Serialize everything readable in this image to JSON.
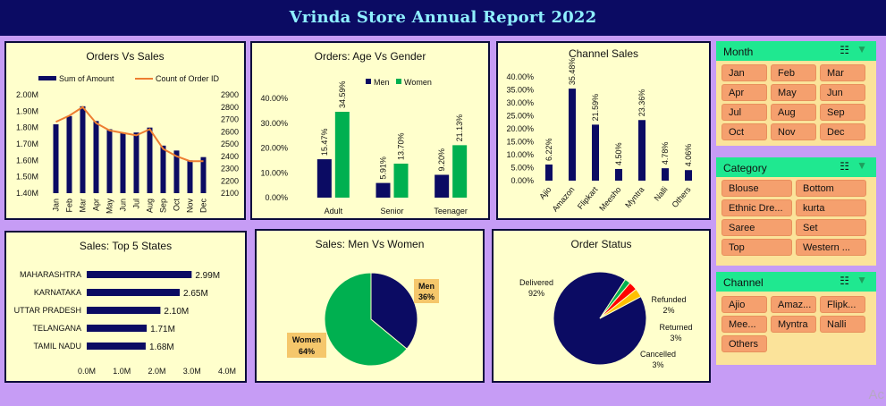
{
  "title": "Vrinda Store Annual Report 2022",
  "colors": {
    "navy": "#0b0b63",
    "green": "#00b050",
    "orange": "#ed7d31",
    "red": "#ff0000",
    "yellow": "#ffc000",
    "panel_bg": "#ffffcc",
    "slicer_header": "#1fe890",
    "slicer_button": "#f5a06e"
  },
  "charts": [
    {
      "id": "orders_vs_sales",
      "type": "bar+line",
      "title": "Orders Vs Sales",
      "legend": [
        "Sum of Amount",
        "Count of Order ID"
      ],
      "categories": [
        "Jan",
        "Feb",
        "Mar",
        "Apr",
        "May",
        "Jun",
        "Jul",
        "Aug",
        "Sep",
        "Oct",
        "Nov",
        "Dec"
      ],
      "series": [
        {
          "name": "Sum of Amount",
          "values": [
            1.82,
            1.87,
            1.93,
            1.84,
            1.79,
            1.77,
            1.77,
            1.8,
            1.69,
            1.66,
            1.6,
            1.62
          ]
        },
        {
          "name": "Count of Order ID",
          "values": [
            2680,
            2730,
            2800,
            2670,
            2610,
            2590,
            2570,
            2620,
            2460,
            2400,
            2360,
            2360
          ]
        }
      ],
      "y_ticks": [
        "1.40M",
        "1.50M",
        "1.60M",
        "1.70M",
        "1.80M",
        "1.90M",
        "2.00M"
      ],
      "y_range": [
        1.4,
        2.0
      ],
      "y2_ticks": [
        "2100",
        "2200",
        "2300",
        "2400",
        "2500",
        "2600",
        "2700",
        "2800",
        "2900"
      ],
      "y2_range": [
        2100,
        2900
      ]
    },
    {
      "id": "age_vs_gender",
      "type": "bar",
      "title": "Orders: Age Vs Gender",
      "categories": [
        "Adult",
        "Senior",
        "Teenager"
      ],
      "series": [
        {
          "name": "Men",
          "values": [
            15.47,
            5.91,
            9.2
          ],
          "labels": [
            "15.47%",
            "5.91%",
            "9.20%"
          ]
        },
        {
          "name": "Women",
          "values": [
            34.59,
            13.7,
            21.13
          ],
          "labels": [
            "34.59%",
            "13.70%",
            "21.13%"
          ]
        }
      ],
      "y_ticks": [
        "0.00%",
        "10.00%",
        "20.00%",
        "30.00%",
        "40.00%"
      ],
      "y_range": [
        0,
        40
      ]
    },
    {
      "id": "channel_sales",
      "type": "bar",
      "title": "Channel Sales",
      "categories": [
        "Ajio",
        "Amazon",
        "Flipkart",
        "Meesho",
        "Myntra",
        "Nalli",
        "Others"
      ],
      "values": [
        6.22,
        35.48,
        21.59,
        4.5,
        23.36,
        4.78,
        4.06
      ],
      "labels": [
        "6.22%",
        "35.48%",
        "21.59%",
        "4.50%",
        "23.36%",
        "4.78%",
        "4.06%"
      ],
      "y_ticks": [
        "0.00%",
        "5.00%",
        "10.00%",
        "15.00%",
        "20.00%",
        "25.00%",
        "30.00%",
        "35.00%",
        "40.00%"
      ],
      "y_range": [
        0,
        40
      ]
    },
    {
      "id": "top_states",
      "type": "bar",
      "orientation": "horizontal",
      "title": "Sales: Top 5 States",
      "categories": [
        "MAHARASHTRA",
        "KARNATAKA",
        "UTTAR PRADESH",
        "TELANGANA",
        "TAMIL NADU"
      ],
      "values": [
        2.99,
        2.65,
        2.1,
        1.71,
        1.68
      ],
      "labels": [
        "2.99M",
        "2.65M",
        "2.10M",
        "1.71M",
        "1.68M"
      ],
      "x_ticks": [
        "0.0M",
        "1.0M",
        "2.0M",
        "3.0M",
        "4.0M"
      ],
      "x_range": [
        0,
        4
      ]
    },
    {
      "id": "men_vs_women",
      "type": "pie",
      "title": "Sales: Men Vs Women",
      "slices": [
        {
          "name": "Men",
          "value": 36,
          "label": "36%"
        },
        {
          "name": "Women",
          "value": 64,
          "label": "64%"
        }
      ]
    },
    {
      "id": "order_status",
      "type": "pie",
      "title": "Order Status",
      "slices": [
        {
          "name": "Delivered",
          "value": 92,
          "label": "92%"
        },
        {
          "name": "Refunded",
          "value": 2,
          "label": "2%"
        },
        {
          "name": "Returned",
          "value": 3,
          "label": "3%"
        },
        {
          "name": "Cancelled",
          "value": 3,
          "label": "3%"
        }
      ]
    }
  ],
  "slicers": [
    {
      "title": "Month",
      "items": [
        "Jan",
        "Feb",
        "Mar",
        "Apr",
        "May",
        "Jun",
        "Jul",
        "Aug",
        "Sep",
        "Oct",
        "Nov",
        "Dec"
      ]
    },
    {
      "title": "Category",
      "items": [
        "Blouse",
        "Bottom",
        "Ethnic Dre...",
        "kurta",
        "Saree",
        "Set",
        "Top",
        "Western ..."
      ]
    },
    {
      "title": "Channel",
      "items": [
        "Ajio",
        "Amaz...",
        "Flipk...",
        "Mee...",
        "Myntra",
        "Nalli",
        "Others"
      ]
    }
  ],
  "watermark": "Ac",
  "icons": {
    "multi_select": "multi-select-icon",
    "clear_filter": "clear-filter-icon"
  }
}
